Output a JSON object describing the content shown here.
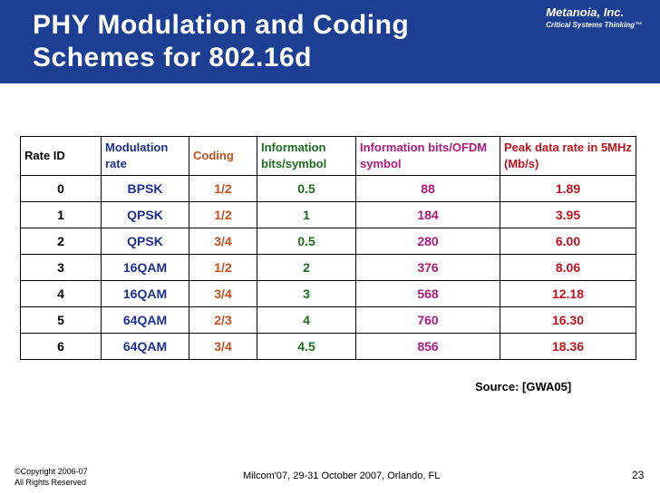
{
  "header": {
    "title_line1": "PHY Modulation and Coding",
    "title_line2": "Schemes for 802.16d",
    "company_name": "Metanoia, Inc.",
    "company_tagline": "Critical Systems Thinking™",
    "banner_color": "#1c3f94"
  },
  "table": {
    "headers": {
      "rate_id": "Rate ID",
      "modulation": "Modulation rate",
      "coding": "Coding",
      "info_bits": "Information bits/symbol",
      "info_ofdm": "Information bits/OFDM symbol",
      "peak": "Peak data rate in 5MHz (Mb/s)"
    },
    "rows": [
      [
        "0",
        "BPSK",
        "1/2",
        "0.5",
        "88",
        "1.89"
      ],
      [
        "1",
        "QPSK",
        "1/2",
        "1",
        "184",
        "3.95"
      ],
      [
        "2",
        "QPSK",
        "3/4",
        "0.5",
        "280",
        "6.00"
      ],
      [
        "3",
        "16QAM",
        "1/2",
        "2",
        "376",
        "8.06"
      ],
      [
        "4",
        "16QAM",
        "3/4",
        "3",
        "568",
        "12.18"
      ],
      [
        "5",
        "64QAM",
        "2/3",
        "4",
        "760",
        "16.30"
      ],
      [
        "6",
        "64QAM",
        "3/4",
        "4.5",
        "856",
        "18.36"
      ]
    ]
  },
  "source": "Source: [GWA05]",
  "footer": {
    "copyright_line1": "©Copyright  2006-07",
    "copyright_line2": "All Rights Reserved",
    "event": "Milcom'07, 29-31 October 2007,  Orlando, FL",
    "page_number": "23"
  }
}
